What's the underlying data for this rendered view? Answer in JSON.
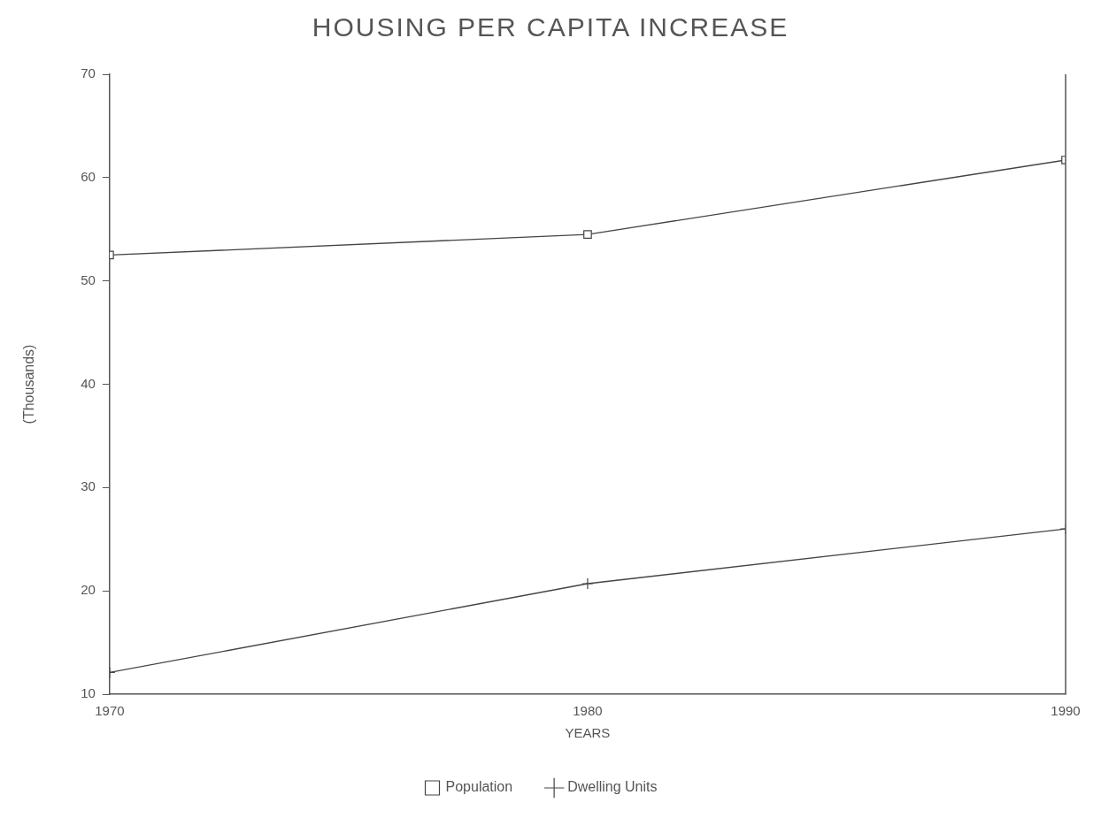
{
  "chart_data": {
    "type": "line",
    "title": "HOUSING PER CAPITA INCREASE",
    "xlabel": "YEARS",
    "ylabel": "(Thousands)",
    "x": [
      1970,
      1980,
      1990
    ],
    "series": [
      {
        "name": "Population",
        "color": "#444444",
        "marker": "square",
        "values": [
          52.5,
          54.5,
          61.7
        ]
      },
      {
        "name": "Dwelling Units",
        "color": "#444444",
        "marker": "cross",
        "values": [
          12.1,
          20.7,
          26.0
        ]
      }
    ],
    "xlim": [
      1970,
      1990
    ],
    "xticks": [
      1970,
      1980,
      1990
    ],
    "ylim": [
      10,
      70
    ],
    "yticks": [
      10,
      20,
      30,
      40,
      50,
      60,
      70
    ],
    "grid": false,
    "legend": "bottom",
    "line_style": "solid"
  }
}
